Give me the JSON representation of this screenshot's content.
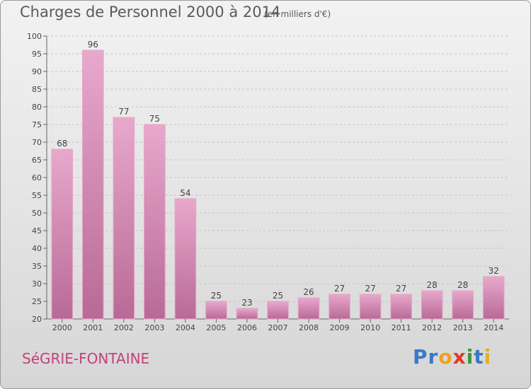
{
  "chart_data": {
    "type": "bar",
    "title": "Charges de Personnel 2000 à 2014",
    "subtitle": "(en milliers d'€)",
    "categories": [
      "2000",
      "2001",
      "2002",
      "2003",
      "2004",
      "2005",
      "2006",
      "2007",
      "2008",
      "2009",
      "2010",
      "2011",
      "2012",
      "2013",
      "2014"
    ],
    "values": [
      68,
      96,
      77,
      75,
      54,
      25,
      23,
      25,
      26,
      27,
      27,
      27,
      28,
      28,
      32
    ],
    "ylim": [
      20,
      100
    ],
    "yticks": [
      20,
      25,
      30,
      35,
      40,
      45,
      50,
      55,
      60,
      65,
      70,
      75,
      80,
      85,
      90,
      95,
      100
    ],
    "grid": true,
    "bar_color": "#d890b8"
  },
  "footer": {
    "commune": "SéGRIE-FONTAINE",
    "brand_letters": [
      {
        "ch": "P",
        "color": "#3a78c8"
      },
      {
        "ch": "r",
        "color": "#3a78c8"
      },
      {
        "ch": "o",
        "color": "#f0a020"
      },
      {
        "ch": "x",
        "color": "#e03a2a"
      },
      {
        "ch": "i",
        "color": "#3a9a3a"
      },
      {
        "ch": "t",
        "color": "#3a78c8"
      },
      {
        "ch": "i",
        "color": "#e0b020"
      }
    ]
  }
}
